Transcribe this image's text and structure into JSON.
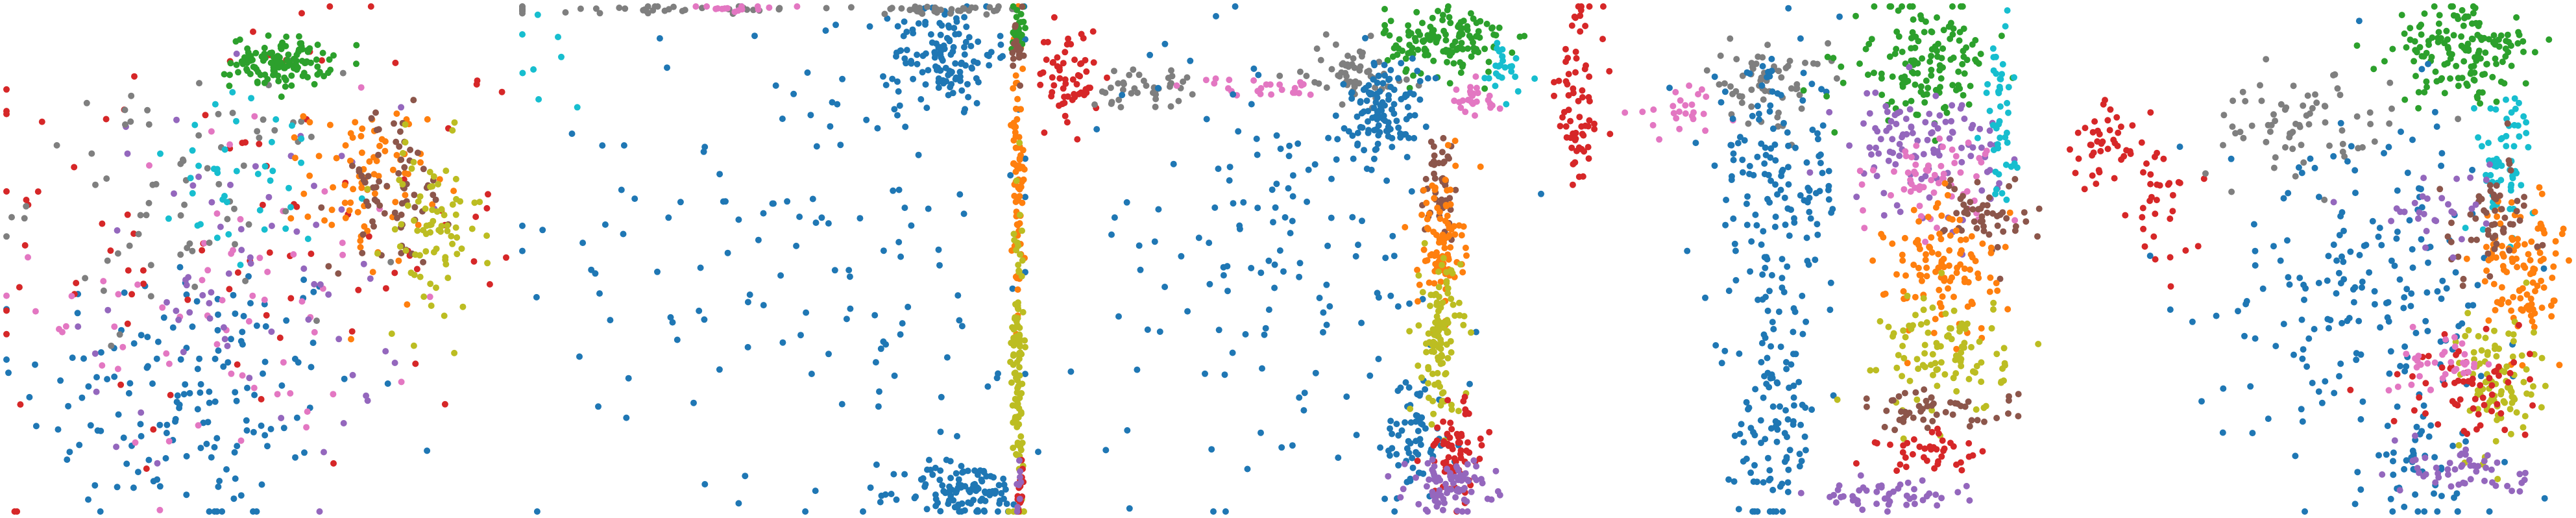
{
  "colors": {
    "blue": "#1f77b4",
    "orange": "#ff7f0e",
    "green": "#2ca02c",
    "red": "#d62728",
    "purple": "#9467bd",
    "brown": "#8c564b",
    "pink": "#e377c2",
    "gray": "#7f7f7f",
    "olive": "#bcbd22",
    "cyan": "#17becf"
  },
  "chart_data": [
    {
      "type": "scatter",
      "title": "",
      "xlabel": "",
      "ylabel": "",
      "axes_visible": false,
      "grid": false,
      "legend": "none",
      "xlim": [
        0,
        1
      ],
      "ylim": [
        0,
        1
      ],
      "clusters": [
        {
          "color": "blue",
          "cx": 0.37,
          "cy": 0.23,
          "sx": 0.17,
          "sy": 0.15,
          "count": 160
        },
        {
          "color": "red",
          "cx": 0.47,
          "cy": 0.55,
          "sx": 0.29,
          "sy": 0.24,
          "count": 95
        },
        {
          "color": "pink",
          "cx": 0.45,
          "cy": 0.42,
          "sx": 0.19,
          "sy": 0.18,
          "count": 65
        },
        {
          "color": "purple",
          "cx": 0.48,
          "cy": 0.45,
          "sx": 0.16,
          "sy": 0.18,
          "count": 70
        },
        {
          "color": "gray",
          "cx": 0.35,
          "cy": 0.63,
          "sx": 0.15,
          "sy": 0.12,
          "count": 70
        },
        {
          "color": "cyan",
          "cx": 0.5,
          "cy": 0.64,
          "sx": 0.12,
          "sy": 0.09,
          "count": 40
        },
        {
          "color": "green",
          "cx": 0.55,
          "cy": 0.89,
          "sx": 0.05,
          "sy": 0.025,
          "count": 120
        },
        {
          "color": "orange",
          "cx": 0.72,
          "cy": 0.65,
          "sx": 0.06,
          "sy": 0.08,
          "count": 80
        },
        {
          "color": "brown",
          "cx": 0.77,
          "cy": 0.64,
          "sx": 0.06,
          "sy": 0.08,
          "count": 70
        },
        {
          "color": "olive",
          "cx": 0.85,
          "cy": 0.55,
          "sx": 0.05,
          "sy": 0.09,
          "count": 80
        }
      ]
    },
    {
      "type": "scatter",
      "title": "",
      "xlabel": "",
      "ylabel": "",
      "axes_visible": false,
      "grid": false,
      "legend": "none",
      "xlim": [
        0,
        1
      ],
      "ylim": [
        0,
        1
      ],
      "clusters": [
        {
          "color": "blue",
          "cx": 0.84,
          "cy": 0.91,
          "sx": 0.05,
          "sy": 0.05,
          "count": 120
        },
        {
          "color": "blue",
          "cx": 0.88,
          "cy": 0.04,
          "sx": 0.06,
          "sy": 0.03,
          "count": 110
        },
        {
          "color": "blue",
          "cx": 0.6,
          "cy": 0.55,
          "sx": 0.28,
          "sy": 0.25,
          "count": 150
        },
        {
          "color": "gray",
          "cx": 0.3,
          "cy": 0.995,
          "sx": 0.18,
          "sy": 0.004,
          "count": 45
        },
        {
          "color": "gray",
          "cx": 0.86,
          "cy": 0.995,
          "sx": 0.08,
          "sy": 0.004,
          "count": 35
        },
        {
          "color": "pink",
          "cx": 0.43,
          "cy": 0.995,
          "sx": 0.06,
          "sy": 0.004,
          "count": 15
        },
        {
          "color": "orange",
          "cx": 0.985,
          "cy": 0.68,
          "sx": 0.006,
          "sy": 0.14,
          "count": 80
        },
        {
          "color": "olive",
          "cx": 0.985,
          "cy": 0.28,
          "sx": 0.006,
          "sy": 0.17,
          "count": 110
        },
        {
          "color": "green",
          "cx": 0.985,
          "cy": 0.96,
          "sx": 0.006,
          "sy": 0.03,
          "count": 30
        },
        {
          "color": "red",
          "cx": 0.99,
          "cy": 0.03,
          "sx": 0.005,
          "sy": 0.03,
          "count": 15
        },
        {
          "color": "brown",
          "cx": 0.985,
          "cy": 0.9,
          "sx": 0.006,
          "sy": 0.04,
          "count": 20
        },
        {
          "color": "cyan",
          "cx": 0.05,
          "cy": 0.9,
          "sx": 0.04,
          "sy": 0.06,
          "count": 8
        },
        {
          "color": "purple",
          "cx": 0.99,
          "cy": 0.06,
          "sx": 0.005,
          "sy": 0.03,
          "count": 10
        }
      ]
    },
    {
      "type": "scatter",
      "title": "",
      "xlabel": "",
      "ylabel": "",
      "axes_visible": false,
      "grid": false,
      "legend": "none",
      "xlim": [
        0,
        1
      ],
      "ylim": [
        0,
        1
      ],
      "clusters": [
        {
          "color": "red",
          "cx": 0.06,
          "cy": 0.86,
          "sx": 0.03,
          "sy": 0.05,
          "count": 60
        },
        {
          "color": "gray",
          "cx": 0.2,
          "cy": 0.84,
          "sx": 0.05,
          "sy": 0.02,
          "count": 40
        },
        {
          "color": "gray",
          "cx": 0.63,
          "cy": 0.87,
          "sx": 0.05,
          "sy": 0.03,
          "count": 60
        },
        {
          "color": "pink",
          "cx": 0.42,
          "cy": 0.84,
          "sx": 0.07,
          "sy": 0.01,
          "count": 25
        },
        {
          "color": "green",
          "cx": 0.81,
          "cy": 0.93,
          "sx": 0.06,
          "sy": 0.035,
          "count": 140
        },
        {
          "color": "blue",
          "cx": 0.69,
          "cy": 0.8,
          "sx": 0.035,
          "sy": 0.05,
          "count": 110
        },
        {
          "color": "blue",
          "cx": 0.48,
          "cy": 0.5,
          "sx": 0.2,
          "sy": 0.22,
          "count": 150
        },
        {
          "color": "blue",
          "cx": 0.75,
          "cy": 0.15,
          "sx": 0.03,
          "sy": 0.06,
          "count": 60
        },
        {
          "color": "brown",
          "cx": 0.8,
          "cy": 0.65,
          "sx": 0.02,
          "sy": 0.06,
          "count": 45
        },
        {
          "color": "orange",
          "cx": 0.8,
          "cy": 0.53,
          "sx": 0.022,
          "sy": 0.07,
          "count": 90
        },
        {
          "color": "olive",
          "cx": 0.8,
          "cy": 0.34,
          "sx": 0.02,
          "sy": 0.08,
          "count": 110
        },
        {
          "color": "red",
          "cx": 0.83,
          "cy": 0.12,
          "sx": 0.03,
          "sy": 0.05,
          "count": 70
        },
        {
          "color": "purple",
          "cx": 0.82,
          "cy": 0.05,
          "sx": 0.045,
          "sy": 0.025,
          "count": 80
        },
        {
          "color": "cyan",
          "cx": 0.92,
          "cy": 0.88,
          "sx": 0.03,
          "sy": 0.04,
          "count": 25
        },
        {
          "color": "pink",
          "cx": 0.86,
          "cy": 0.81,
          "sx": 0.035,
          "sy": 0.02,
          "count": 25
        }
      ]
    },
    {
      "type": "scatter",
      "title": "",
      "xlabel": "",
      "ylabel": "",
      "axes_visible": false,
      "grid": false,
      "legend": "none",
      "xlim": [
        0,
        1
      ],
      "ylim": [
        0,
        1
      ],
      "clusters": [
        {
          "color": "red",
          "cx": 0.05,
          "cy": 0.82,
          "sx": 0.025,
          "sy": 0.1,
          "count": 70
        },
        {
          "color": "gray",
          "cx": 0.42,
          "cy": 0.85,
          "sx": 0.06,
          "sy": 0.04,
          "count": 60
        },
        {
          "color": "pink",
          "cx": 0.25,
          "cy": 0.79,
          "sx": 0.05,
          "sy": 0.02,
          "count": 25
        },
        {
          "color": "blue",
          "cx": 0.44,
          "cy": 0.64,
          "sx": 0.07,
          "sy": 0.12,
          "count": 150
        },
        {
          "color": "blue",
          "cx": 0.44,
          "cy": 0.18,
          "sx": 0.04,
          "sy": 0.12,
          "count": 110
        },
        {
          "color": "green",
          "cx": 0.73,
          "cy": 0.89,
          "sx": 0.07,
          "sy": 0.06,
          "count": 140
        },
        {
          "color": "purple",
          "cx": 0.73,
          "cy": 0.72,
          "sx": 0.08,
          "sy": 0.06,
          "count": 110
        },
        {
          "color": "pink",
          "cx": 0.76,
          "cy": 0.66,
          "sx": 0.06,
          "sy": 0.04,
          "count": 60
        },
        {
          "color": "cyan",
          "cx": 0.88,
          "cy": 0.8,
          "sx": 0.02,
          "sy": 0.1,
          "count": 45
        },
        {
          "color": "brown",
          "cx": 0.86,
          "cy": 0.59,
          "sx": 0.04,
          "sy": 0.04,
          "count": 50
        },
        {
          "color": "orange",
          "cx": 0.78,
          "cy": 0.48,
          "sx": 0.06,
          "sy": 0.07,
          "count": 110
        },
        {
          "color": "olive",
          "cx": 0.78,
          "cy": 0.31,
          "sx": 0.06,
          "sy": 0.06,
          "count": 100
        },
        {
          "color": "brown",
          "cx": 0.76,
          "cy": 0.2,
          "sx": 0.08,
          "sy": 0.02,
          "count": 50
        },
        {
          "color": "red",
          "cx": 0.76,
          "cy": 0.12,
          "sx": 0.06,
          "sy": 0.02,
          "count": 40
        },
        {
          "color": "purple",
          "cx": 0.66,
          "cy": 0.03,
          "sx": 0.08,
          "sy": 0.015,
          "count": 50
        }
      ]
    },
    {
      "type": "scatter",
      "title": "",
      "xlabel": "",
      "ylabel": "",
      "axes_visible": false,
      "grid": false,
      "legend": "none",
      "xlim": [
        0,
        1
      ],
      "ylim": [
        0,
        1
      ],
      "clusters": [
        {
          "color": "red",
          "cx": 0.06,
          "cy": 0.72,
          "sx": 0.03,
          "sy": 0.04,
          "count": 40
        },
        {
          "color": "red",
          "cx": 0.18,
          "cy": 0.62,
          "sx": 0.03,
          "sy": 0.07,
          "count": 35
        },
        {
          "color": "gray",
          "cx": 0.45,
          "cy": 0.76,
          "sx": 0.1,
          "sy": 0.05,
          "count": 70
        },
        {
          "color": "green",
          "cx": 0.79,
          "cy": 0.91,
          "sx": 0.07,
          "sy": 0.05,
          "count": 150
        },
        {
          "color": "cyan",
          "cx": 0.87,
          "cy": 0.7,
          "sx": 0.03,
          "sy": 0.07,
          "count": 60
        },
        {
          "color": "blue",
          "cx": 0.6,
          "cy": 0.45,
          "sx": 0.15,
          "sy": 0.17,
          "count": 200
        },
        {
          "color": "blue",
          "cx": 0.7,
          "cy": 0.08,
          "sx": 0.04,
          "sy": 0.05,
          "count": 40
        },
        {
          "color": "orange",
          "cx": 0.9,
          "cy": 0.48,
          "sx": 0.04,
          "sy": 0.07,
          "count": 110
        },
        {
          "color": "brown",
          "cx": 0.84,
          "cy": 0.57,
          "sx": 0.05,
          "sy": 0.06,
          "count": 55
        },
        {
          "color": "olive",
          "cx": 0.86,
          "cy": 0.26,
          "sx": 0.04,
          "sy": 0.07,
          "count": 90
        },
        {
          "color": "red",
          "cx": 0.78,
          "cy": 0.24,
          "sx": 0.07,
          "sy": 0.05,
          "count": 60
        },
        {
          "color": "purple",
          "cx": 0.8,
          "cy": 0.08,
          "sx": 0.06,
          "sy": 0.03,
          "count": 50
        },
        {
          "color": "pink",
          "cx": 0.76,
          "cy": 0.3,
          "sx": 0.05,
          "sy": 0.03,
          "count": 35
        },
        {
          "color": "purple",
          "cx": 0.72,
          "cy": 0.6,
          "sx": 0.06,
          "sy": 0.04,
          "count": 30
        }
      ]
    }
  ]
}
